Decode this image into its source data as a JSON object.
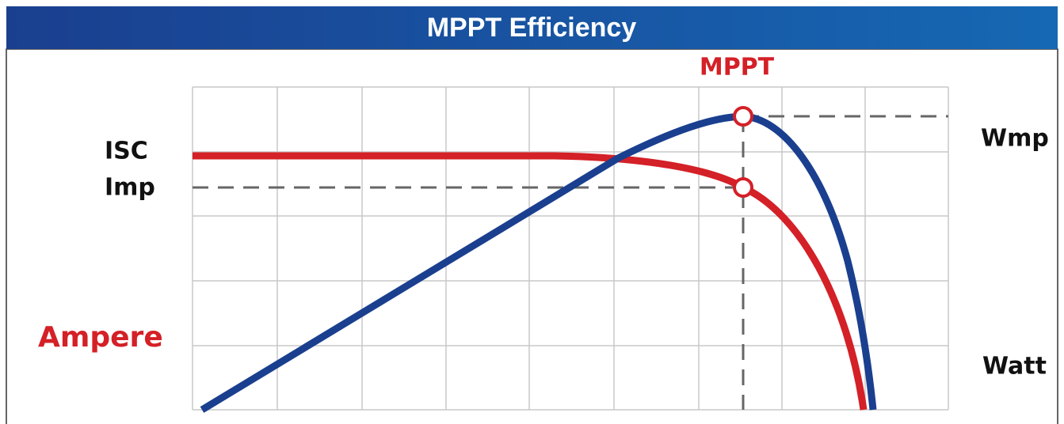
{
  "header": {
    "title": "MPPT Efficiency"
  },
  "labels": {
    "mppt": "MPPT",
    "isc": "ISC",
    "imp": "Imp",
    "ampere": "Ampere",
    "wmp": "Wmp",
    "watt": "Watt"
  }
}
